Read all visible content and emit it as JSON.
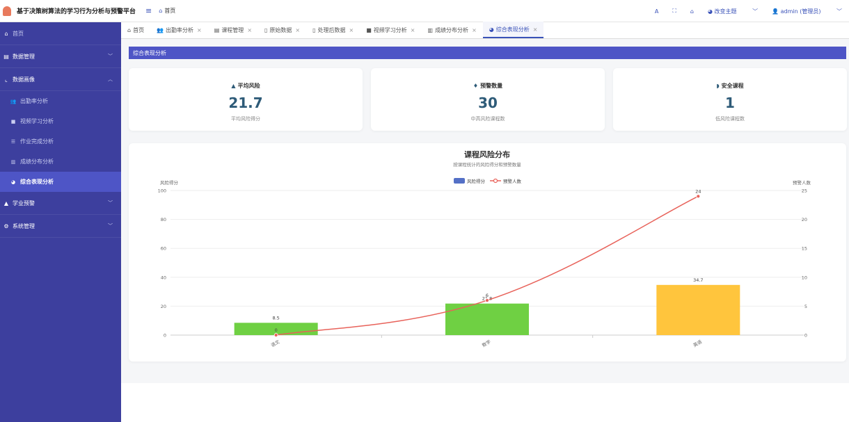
{
  "header": {
    "app_title": "基于决策树算法的学习行为分析与预警平台",
    "breadcrumb": "首页",
    "tools": {
      "font": "A",
      "theme_label": "改变主题",
      "user_label": "admin (管理员)"
    }
  },
  "sidebar": {
    "items": [
      {
        "label": "首页"
      },
      {
        "label": "数据管理"
      },
      {
        "label": "数据画像"
      },
      {
        "label": "学业预警"
      },
      {
        "label": "系统管理"
      }
    ],
    "subitems": [
      {
        "label": "出勤率分析"
      },
      {
        "label": "视频学习分析"
      },
      {
        "label": "作业完成分析"
      },
      {
        "label": "成绩分布分析"
      },
      {
        "label": "综合表现分析"
      }
    ]
  },
  "tabs": [
    {
      "label": "首页"
    },
    {
      "label": "出勤率分析"
    },
    {
      "label": "课程管理"
    },
    {
      "label": "原始数据"
    },
    {
      "label": "处理后数据"
    },
    {
      "label": "视频学习分析"
    },
    {
      "label": "成绩分布分析"
    },
    {
      "label": "综合表现分析"
    }
  ],
  "section_title": "综合表现分析",
  "cards": [
    {
      "title": "平均风险",
      "value": "21.7",
      "sub": "平均风险得分"
    },
    {
      "title": "预警数量",
      "value": "30",
      "sub": "中高风险课程数"
    },
    {
      "title": "安全课程",
      "value": "1",
      "sub": "低风险课程数"
    }
  ],
  "chart_data": {
    "type": "bar",
    "title": "课程风险分布",
    "subtitle": "按课程统计的风险得分和预警数量",
    "categories": [
      "语文",
      "数学",
      "英语"
    ],
    "series": [
      {
        "name": "风险得分",
        "type": "bar",
        "values": [
          8.5,
          21.8,
          34.7
        ],
        "colors": [
          "#6fd043",
          "#6fd043",
          "#ffc53d"
        ]
      },
      {
        "name": "预警人数",
        "type": "line",
        "values": [
          0,
          6,
          24
        ],
        "color": "#e8625a"
      }
    ],
    "ylabel_left": "风险得分",
    "ylabel_right": "预警人数",
    "ylim_left": [
      0,
      100
    ],
    "ylim_right": [
      0,
      25
    ],
    "yticks_left": [
      0,
      20,
      40,
      60,
      80,
      100
    ],
    "yticks_right": [
      0,
      5,
      10,
      15,
      20,
      25
    ],
    "legend": "top-center",
    "grid": true
  }
}
